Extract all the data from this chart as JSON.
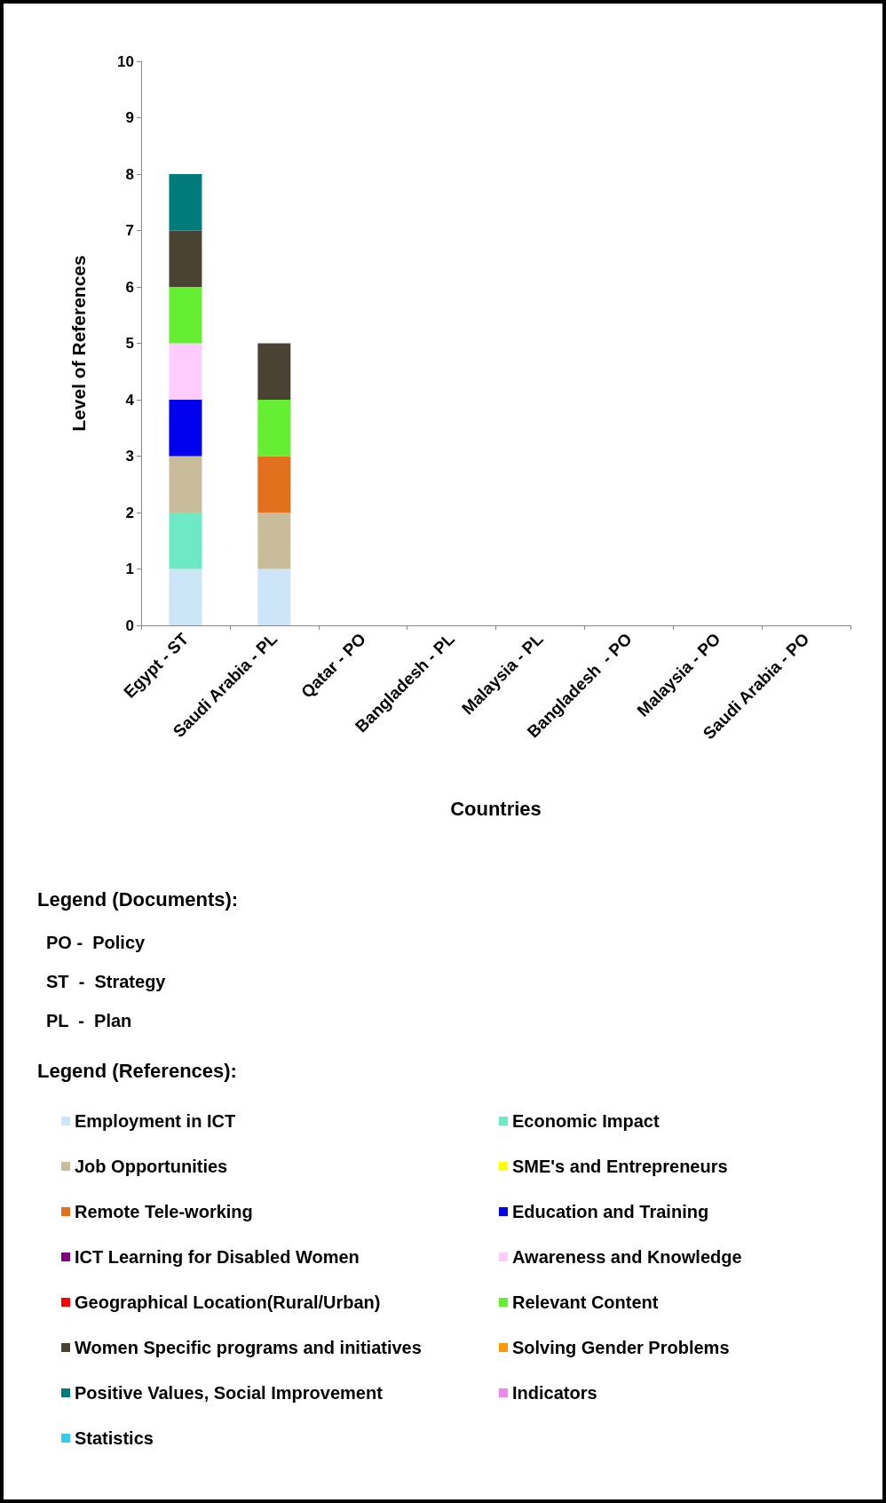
{
  "chart_data": {
    "type": "bar",
    "stacked": true,
    "xlabel": "Countries",
    "ylabel": "Level of References",
    "legend_title": "Legend (References):",
    "annotations": [
      "Legend (Documents):",
      "PO -  Policy",
      "ST  -  Strategy",
      "PL  -  Plan"
    ],
    "categories": [
      "Egypt - ST",
      "Saudi Arabia - PL",
      "Qatar - PO",
      "Bangladesh - PL",
      "Malaysia - PL",
      "Bangladesh  - PO",
      "Malaysia - PO",
      "Saudi Arabia - PO"
    ],
    "ylim": [
      0,
      10
    ],
    "yticks": [
      0,
      1,
      2,
      3,
      4,
      5,
      6,
      7,
      8,
      9,
      10
    ],
    "grid": false,
    "legend": "bottom",
    "series": [
      {
        "name": "Employment in ICT",
        "color": "#cde6f7",
        "values": [
          1,
          1,
          0,
          0,
          0,
          0,
          0,
          0
        ]
      },
      {
        "name": "Economic Impact",
        "color": "#6ee9c6",
        "values": [
          1,
          0,
          0,
          0,
          0,
          0,
          0,
          0
        ]
      },
      {
        "name": "Job Opportunities",
        "color": "#c9bc9b",
        "values": [
          1,
          1,
          0,
          0,
          0,
          0,
          0,
          0
        ]
      },
      {
        "name": "SME's and Entrepreneurs",
        "color": "#ffff00",
        "values": [
          0,
          0,
          0,
          0,
          0,
          0,
          0,
          0
        ]
      },
      {
        "name": "Remote Tele-working",
        "color": "#e2701c",
        "values": [
          0,
          1,
          0,
          0,
          0,
          0,
          0,
          0
        ]
      },
      {
        "name": "Education and Training",
        "color": "#0000ee",
        "values": [
          1,
          0,
          0,
          0,
          0,
          0,
          0,
          0
        ]
      },
      {
        "name": "ICT Learning for Disabled Women",
        "color": "#800080",
        "values": [
          0,
          0,
          0,
          0,
          0,
          0,
          0,
          0
        ]
      },
      {
        "name": "Awareness and Knowledge",
        "color": "#ffccff",
        "values": [
          1,
          0,
          0,
          0,
          0,
          0,
          0,
          0
        ]
      },
      {
        "name": "Geographical Location(Rural/Urban)",
        "color": "#ff0000",
        "values": [
          0,
          0,
          0,
          0,
          0,
          0,
          0,
          0
        ]
      },
      {
        "name": "Relevant Content",
        "color": "#66ee33",
        "values": [
          1,
          1,
          0,
          0,
          0,
          0,
          0,
          0
        ]
      },
      {
        "name": "Women Specific programs and initiatives",
        "color": "#4a4232",
        "values": [
          1,
          1,
          0,
          0,
          0,
          0,
          0,
          0
        ]
      },
      {
        "name": "Solving Gender Problems",
        "color": "#ff9900",
        "values": [
          0,
          0,
          0,
          0,
          0,
          0,
          0,
          0
        ]
      },
      {
        "name": "Positive Values, Social Improvement",
        "color": "#007b7b",
        "values": [
          1,
          0,
          0,
          0,
          0,
          0,
          0,
          0
        ]
      },
      {
        "name": "Indicators",
        "color": "#ee88ee",
        "values": [
          0,
          0,
          0,
          0,
          0,
          0,
          0,
          0
        ]
      },
      {
        "name": "Statistics",
        "color": "#33ccee",
        "values": [
          0,
          0,
          0,
          0,
          0,
          0,
          0,
          0
        ]
      }
    ]
  }
}
